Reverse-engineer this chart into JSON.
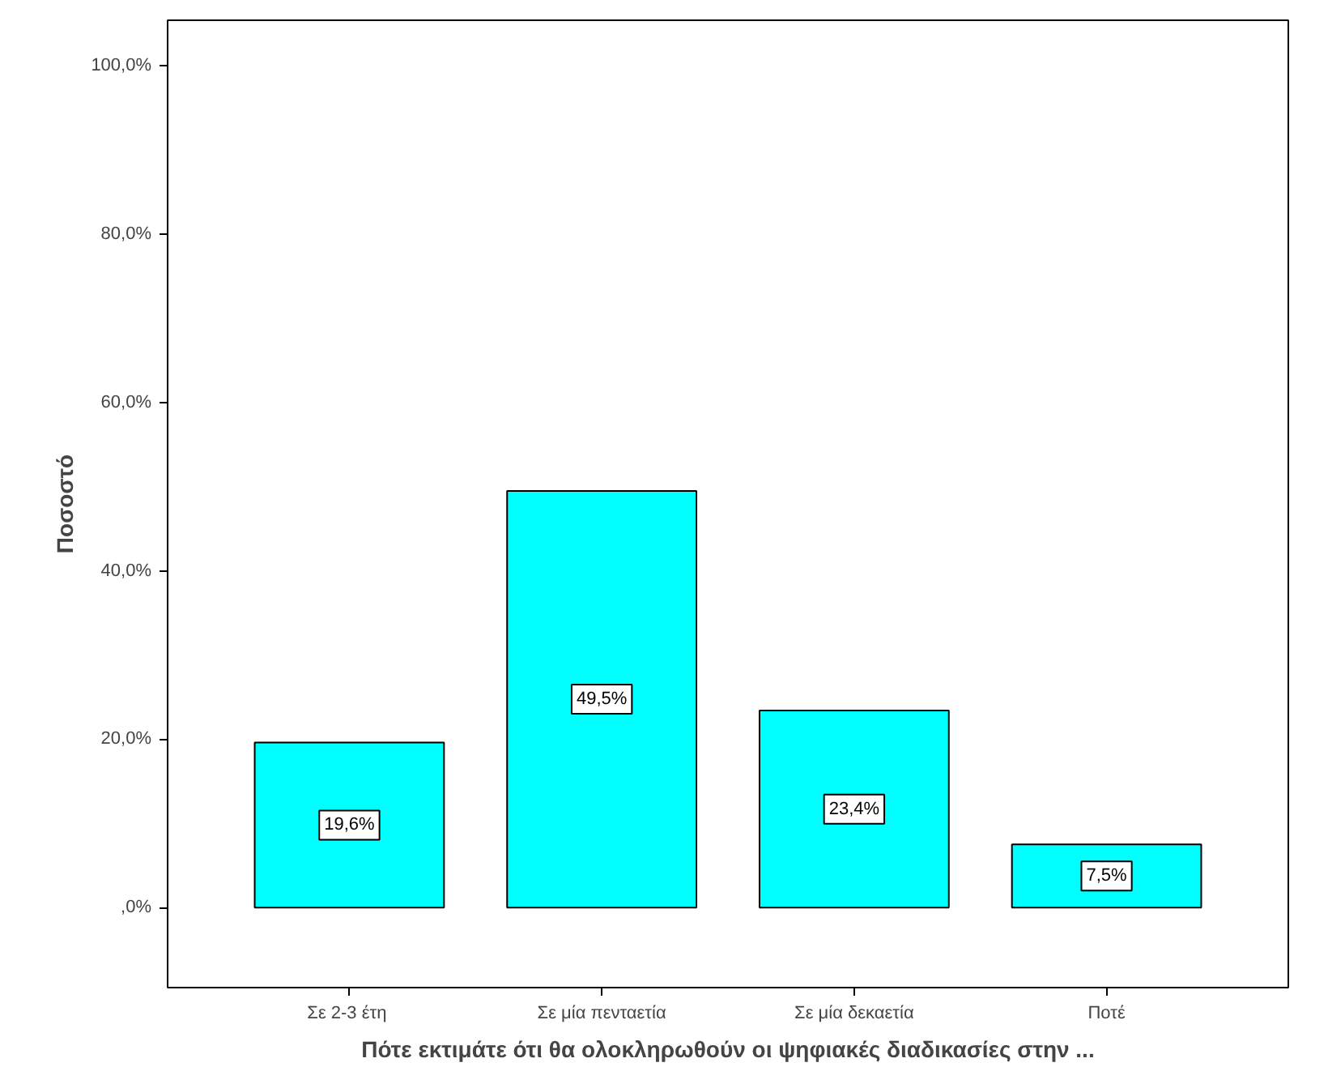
{
  "chart_data": {
    "type": "bar",
    "xlabel": "Πότε εκτιμάτε ότι θα ολοκληρωθούν οι ψηφιακές διαδικασίες στην ...",
    "ylabel": "Ποσοστό",
    "categories": [
      "Σε 2-3  έτη",
      "Σε μία πενταετία",
      "Σε μία δεκαετία",
      "Ποτέ"
    ],
    "values": [
      19.6,
      49.5,
      23.4,
      7.5
    ],
    "color": "#00ffff",
    "value_labels": [
      "19,6%",
      "49,5%",
      "23,4%",
      "7,5%"
    ],
    "ylim": [
      -9.5,
      105.4
    ],
    "yticks": [
      {
        "value": 0,
        "label": ",0%"
      },
      {
        "value": 20,
        "label": "20,0%"
      },
      {
        "value": 40,
        "label": "40,0%"
      },
      {
        "value": 60,
        "label": "60,0%"
      },
      {
        "value": 80,
        "label": "80,0%"
      },
      {
        "value": 100,
        "label": "100,0%"
      }
    ],
    "grid": false
  }
}
